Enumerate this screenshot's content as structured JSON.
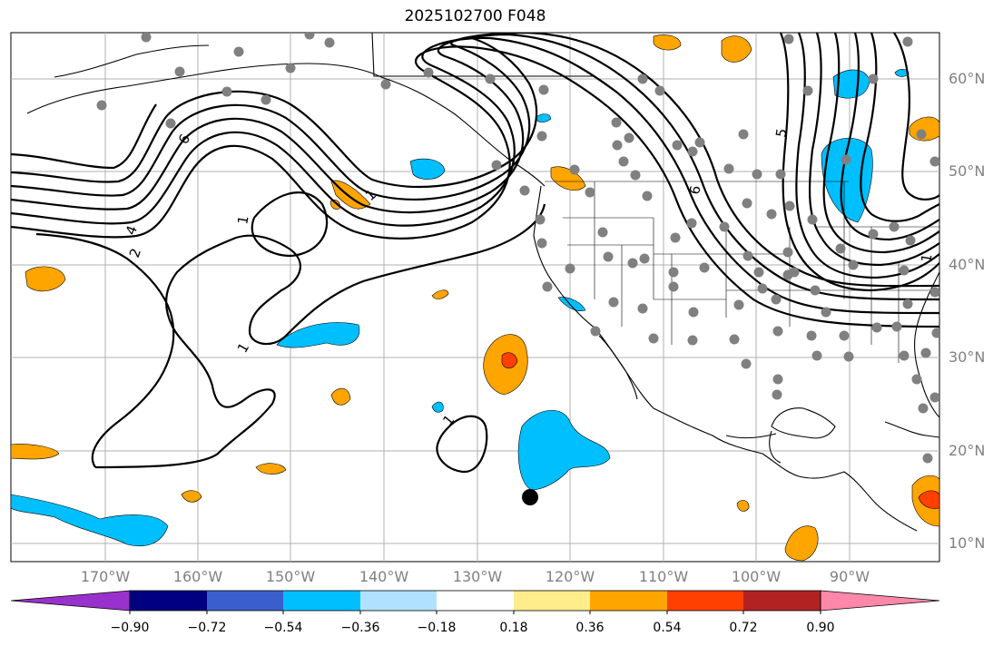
{
  "title": "2025102700 F048",
  "axes": {
    "lat_labels": [
      "60°N",
      "50°N",
      "40°N",
      "30°N",
      "20°N",
      "10°N"
    ],
    "lon_labels": [
      "170°W",
      "160°W",
      "150°W",
      "140°W",
      "130°W",
      "120°W",
      "110°W",
      "100°W",
      "90°W"
    ]
  },
  "contour_labels": [
    "6",
    "5",
    "4",
    "2",
    "1",
    "1",
    "1",
    "1",
    "1",
    "6"
  ],
  "colorbar": {
    "ticks": [
      "−0.90",
      "−0.72",
      "−0.54",
      "−0.36",
      "−0.18",
      "0.18",
      "0.36",
      "0.54",
      "0.72",
      "0.90"
    ],
    "colors": [
      "#9932cc",
      "#000080",
      "#3a5fcd",
      "#00bfff",
      "#b0e2ff",
      "#ffffff",
      "#ffec8b",
      "#ffa500",
      "#ff4000",
      "#b22222",
      "#ff88aa"
    ]
  },
  "colors": {
    "grid": "#b0b0b0",
    "station": "#808080",
    "marker": "#000000"
  }
}
